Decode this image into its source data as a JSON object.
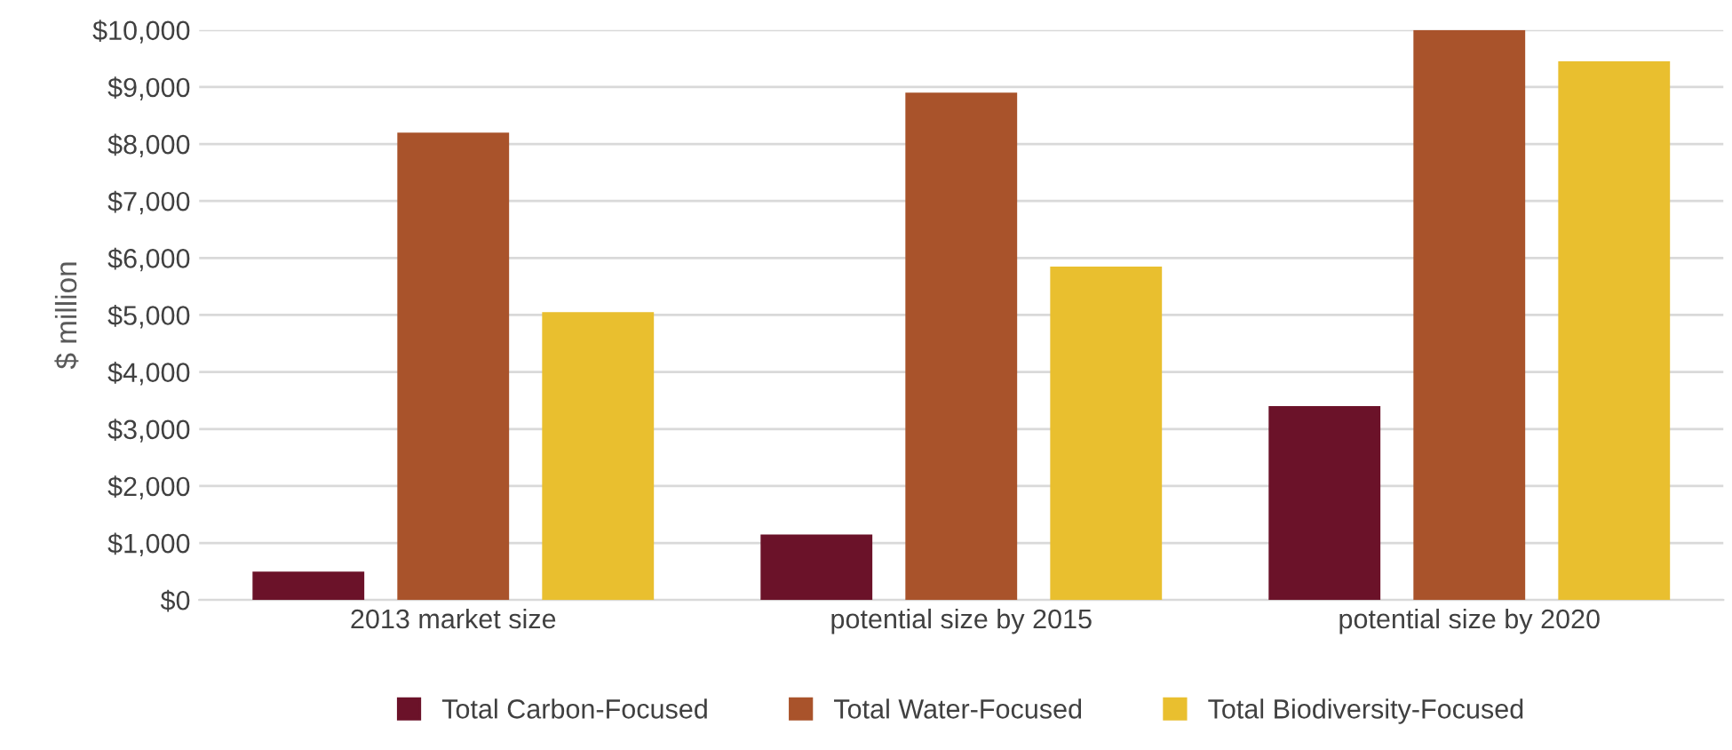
{
  "chart_data": {
    "type": "bar",
    "ylabel": "$ million",
    "categories": [
      "2013 market size",
      "potential size by 2015",
      "potential size by 2020"
    ],
    "series": [
      {
        "name": "Total Carbon-Focused",
        "color": "#6b1229",
        "values": [
          500,
          1150,
          3400
        ]
      },
      {
        "name": "Total Water-Focused",
        "color": "#a9532b",
        "values": [
          8200,
          8900,
          10000
        ]
      },
      {
        "name": "Total Biodiversity-Focused",
        "color": "#e9bf2f",
        "values": [
          5050,
          5850,
          9450
        ]
      }
    ],
    "ylim": [
      0,
      10000
    ],
    "yticks": [
      {
        "value": 0,
        "label": "$0"
      },
      {
        "value": 1000,
        "label": "$1,000"
      },
      {
        "value": 2000,
        "label": "$2,000"
      },
      {
        "value": 3000,
        "label": "$3,000"
      },
      {
        "value": 4000,
        "label": "$4,000"
      },
      {
        "value": 5000,
        "label": "$5,000"
      },
      {
        "value": 6000,
        "label": "$6,000"
      },
      {
        "value": 7000,
        "label": "$7,000"
      },
      {
        "value": 8000,
        "label": "$8,000"
      },
      {
        "value": 9000,
        "label": "$9,000"
      },
      {
        "value": 10000,
        "label": "$10,000"
      }
    ],
    "grid": "y",
    "legend": "bottom"
  }
}
